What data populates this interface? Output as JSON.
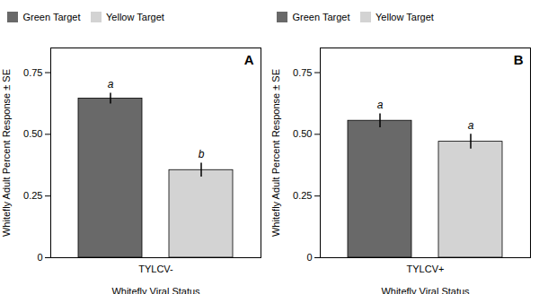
{
  "chart_data": [
    {
      "type": "bar",
      "title": "A",
      "categories": [
        "TYLCV-"
      ],
      "series": [
        {
          "name": "Green Target",
          "color": "#696969",
          "values": [
            0.645
          ],
          "errors": [
            0.022
          ]
        },
        {
          "name": "Yellow Target",
          "color": "#d3d3d3",
          "values": [
            0.355
          ],
          "errors": [
            0.028
          ]
        }
      ],
      "annotations": [
        {
          "text": "a",
          "series": "Green Target",
          "category": "TYLCV-"
        },
        {
          "text": "b",
          "series": "Yellow Target",
          "category": "TYLCV-"
        }
      ],
      "xlabel": "Whitefly Viral Status",
      "ylabel": "Whitefly Adult Percent Response ± SE",
      "ylim": [
        0,
        0.85
      ],
      "yticks": [
        0,
        0.25,
        {
          "value": 0.5,
          "label": "0.50"
        },
        0.75
      ],
      "grid": false,
      "legend": "upper left"
    },
    {
      "type": "bar",
      "title": "B",
      "categories": [
        "TYLCV+"
      ],
      "series": [
        {
          "name": "Green Target",
          "color": "#696969",
          "values": [
            0.555
          ],
          "errors": [
            0.028
          ]
        },
        {
          "name": "Yellow Target",
          "color": "#d3d3d3",
          "values": [
            0.47
          ],
          "errors": [
            0.03
          ]
        }
      ],
      "annotations": [
        {
          "text": "a",
          "series": "Green Target",
          "category": "TYLCV+"
        },
        {
          "text": "a",
          "series": "Yellow Target",
          "category": "TYLCV+"
        }
      ],
      "xlabel": "Whitefly Viral Status",
      "ylabel": "Whitefly Adult Percent Response ± SE",
      "ylim": [
        0,
        0.85
      ],
      "yticks": [
        0,
        0.25,
        {
          "value": 0.5,
          "label": "0.50"
        },
        0.75
      ],
      "grid": false,
      "legend": "upper left"
    }
  ]
}
